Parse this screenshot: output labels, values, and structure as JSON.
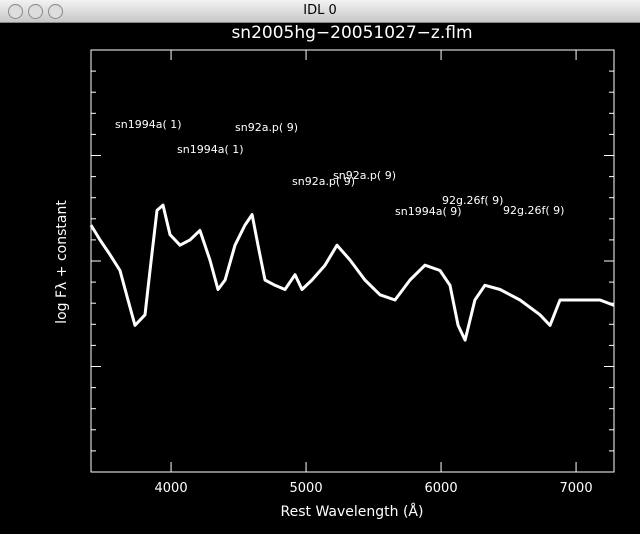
{
  "window": {
    "title": "IDL 0"
  },
  "chart_data": {
    "type": "line",
    "title": "sn2005hg−20051027−z.flm",
    "xlabel": "Rest Wavelength  (Å)",
    "ylabel": "log Fλ + constant",
    "x": [
      3407,
      3474,
      3548,
      3622,
      3681,
      3733,
      3807,
      3844,
      3896,
      3940,
      3992,
      4066,
      4140,
      4214,
      4288,
      4348,
      4400,
      4474,
      4548,
      4600,
      4644,
      4696,
      4770,
      4844,
      4918,
      4970,
      5044,
      5140,
      5229,
      5325,
      5436,
      5548,
      5659,
      5770,
      5881,
      5992,
      6066,
      6126,
      6178,
      6251,
      6325,
      6437,
      6585,
      6733,
      6807,
      6881,
      7029,
      7177,
      7281
    ],
    "values": [
      2.34,
      2.2,
      2.06,
      1.91,
      1.63,
      1.39,
      1.49,
      1.91,
      2.48,
      2.53,
      2.25,
      2.15,
      2.2,
      2.29,
      2.01,
      1.73,
      1.82,
      2.15,
      2.34,
      2.44,
      2.15,
      1.82,
      1.77,
      1.73,
      1.87,
      1.73,
      1.82,
      1.96,
      2.15,
      2.01,
      1.82,
      1.68,
      1.63,
      1.82,
      1.96,
      1.91,
      1.77,
      1.39,
      1.25,
      1.63,
      1.77,
      1.73,
      1.63,
      1.49,
      1.39,
      1.63,
      1.63,
      1.63,
      1.58
    ],
    "color": "#ffffff",
    "xlim": [
      3407,
      7281
    ],
    "xticks": [
      4000,
      5000,
      6000,
      7000
    ],
    "ylim": [
      0,
      4
    ],
    "annotations": [
      "sn1994a( 1)",
      "sn92a.p( 9)",
      "sn1994a( 1)",
      "sn92a.p( 9)",
      "sn92a.p( 9)",
      "92g.26f( 9)",
      "sn1994a( 9)",
      "92g.26f( 9)"
    ]
  }
}
